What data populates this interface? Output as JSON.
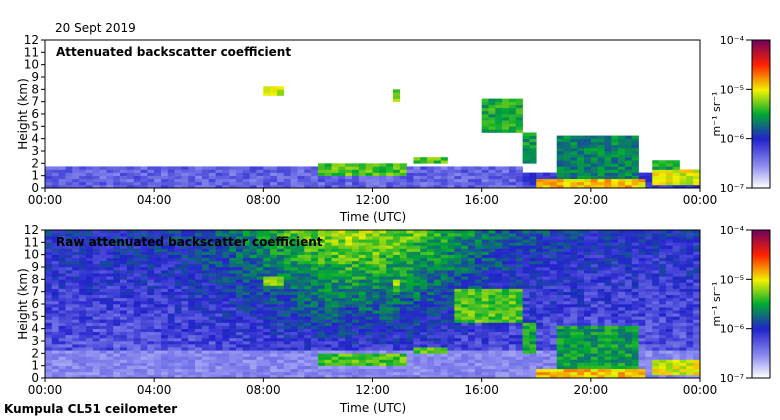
{
  "date_label": "20 Sept 2019",
  "footer_label": "Kumpula CL51 ceilometer",
  "colors": {
    "background": "#ffffff",
    "stops": [
      "#ffffff",
      "#8c8cf0",
      "#2222cc",
      "#00aa33",
      "#f2f200",
      "#ff2200",
      "#6e005f"
    ]
  },
  "chart_data": [
    {
      "type": "heatmap",
      "title": "Attenuated backscatter coefficient",
      "xlabel": "Time (UTC)",
      "ylabel": "Height (km)",
      "x_ticks": [
        "00:00",
        "04:00",
        "08:00",
        "12:00",
        "16:00",
        "20:00",
        "00:00"
      ],
      "y_ticks": [
        "0",
        "1",
        "2",
        "3",
        "4",
        "5",
        "6",
        "7",
        "8",
        "9",
        "10",
        "11",
        "12"
      ],
      "xlim_hours": [
        0,
        24
      ],
      "ylim_km": [
        0,
        12
      ],
      "colorbar": {
        "scale": "log",
        "label": "m⁻¹ sr⁻¹",
        "ticks": [
          "10⁻⁷",
          "10⁻⁶",
          "10⁻⁵",
          "10⁻⁴"
        ],
        "range": [
          1e-07,
          0.0001
        ]
      },
      "features": [
        {
          "t0": 0,
          "t1": 17.5,
          "h0": 0,
          "h1": 1.8,
          "level": 0.22
        },
        {
          "t0": 17.5,
          "t1": 24,
          "h0": 0,
          "h1": 1.2,
          "level": 0.3
        },
        {
          "t0": 8.0,
          "t1": 8.8,
          "h0": 7.6,
          "h1": 8.2,
          "level": 0.62
        },
        {
          "t0": 12.8,
          "t1": 13.1,
          "h0": 7.0,
          "h1": 7.9,
          "level": 0.58
        },
        {
          "t0": 10.0,
          "t1": 13.3,
          "h0": 1.1,
          "h1": 2.0,
          "level": 0.55
        },
        {
          "t0": 13.6,
          "t1": 14.8,
          "h0": 2.0,
          "h1": 2.4,
          "level": 0.55
        },
        {
          "t0": 16.0,
          "t1": 17.6,
          "h0": 4.5,
          "h1": 7.2,
          "level": 0.5
        },
        {
          "t0": 17.6,
          "t1": 18.0,
          "h0": 2.0,
          "h1": 4.5,
          "level": 0.48
        },
        {
          "t0": 18.8,
          "t1": 21.7,
          "h0": 0.2,
          "h1": 4.2,
          "level": 0.45
        },
        {
          "t0": 18.0,
          "t1": 22.0,
          "h0": 0.1,
          "h1": 0.8,
          "level": 0.7
        },
        {
          "t0": 22.2,
          "t1": 24,
          "h0": 0.2,
          "h1": 1.4,
          "level": 0.65
        },
        {
          "t0": 22.2,
          "t1": 23.3,
          "h0": 1.6,
          "h1": 2.2,
          "level": 0.5
        }
      ]
    },
    {
      "type": "heatmap",
      "title": "Raw attenuated backscatter coefficient",
      "xlabel": "Time (UTC)",
      "ylabel": "Height (km)",
      "x_ticks": [
        "00:00",
        "04:00",
        "08:00",
        "12:00",
        "16:00",
        "20:00",
        "00:00"
      ],
      "y_ticks": [
        "0",
        "1",
        "2",
        "3",
        "4",
        "5",
        "6",
        "7",
        "8",
        "9",
        "10",
        "11",
        "12"
      ],
      "xlim_hours": [
        0,
        24
      ],
      "ylim_km": [
        0,
        12
      ],
      "colorbar": {
        "scale": "log",
        "label": "m⁻¹ sr⁻¹",
        "ticks": [
          "10⁻⁷",
          "10⁻⁶",
          "10⁻⁵",
          "10⁻⁴"
        ],
        "range": [
          1e-07,
          0.0001
        ]
      },
      "features": [
        {
          "t0": 8.0,
          "t1": 8.8,
          "h0": 7.6,
          "h1": 8.2,
          "level": 0.62
        },
        {
          "t0": 12.8,
          "t1": 13.1,
          "h0": 7.0,
          "h1": 7.9,
          "level": 0.58
        },
        {
          "t0": 10.0,
          "t1": 13.3,
          "h0": 1.1,
          "h1": 2.0,
          "level": 0.55
        },
        {
          "t0": 13.6,
          "t1": 14.8,
          "h0": 2.0,
          "h1": 2.4,
          "level": 0.55
        },
        {
          "t0": 15.0,
          "t1": 17.6,
          "h0": 4.5,
          "h1": 7.2,
          "level": 0.55
        },
        {
          "t0": 17.6,
          "t1": 18.0,
          "h0": 2.0,
          "h1": 4.5,
          "level": 0.5
        },
        {
          "t0": 18.8,
          "t1": 21.7,
          "h0": 0.2,
          "h1": 4.2,
          "level": 0.48
        },
        {
          "t0": 18.0,
          "t1": 22.0,
          "h0": 0.1,
          "h1": 0.8,
          "level": 0.7
        },
        {
          "t0": 22.2,
          "t1": 24,
          "h0": 0.2,
          "h1": 1.4,
          "level": 0.65
        }
      ]
    }
  ]
}
